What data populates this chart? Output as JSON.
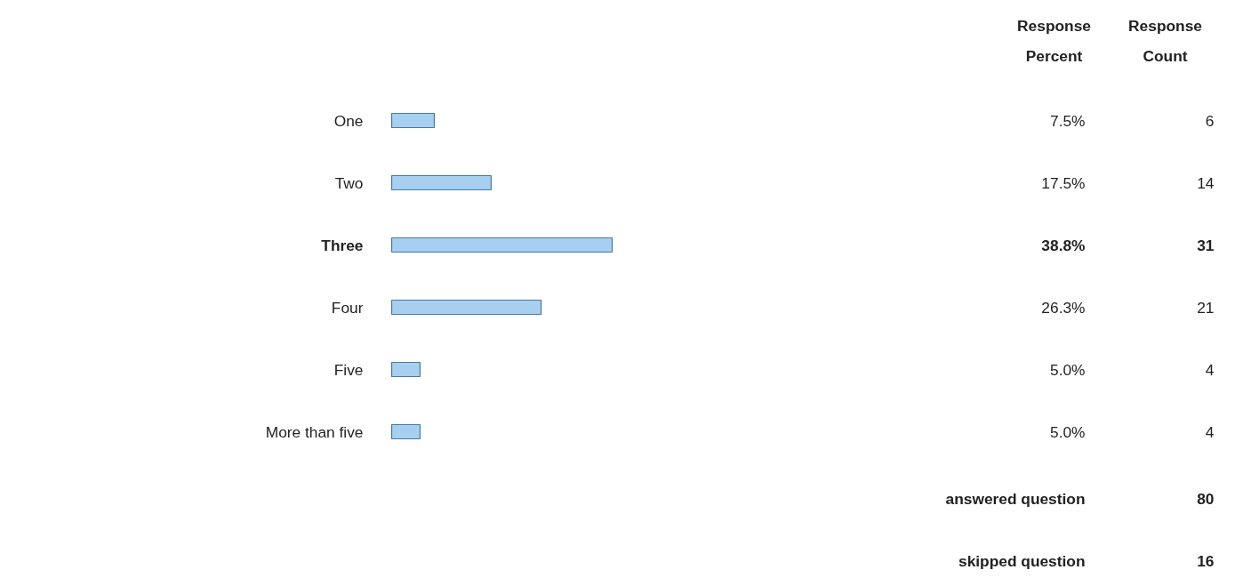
{
  "chart_data": {
    "type": "bar",
    "orientation": "horizontal",
    "categories": [
      "One",
      "Two",
      "Three",
      "Four",
      "Five",
      "More than five"
    ],
    "values": [
      7.5,
      17.5,
      38.8,
      26.3,
      5.0,
      5.0
    ],
    "value_labels": [
      "7.5%",
      "17.5%",
      "38.8%",
      "26.3%",
      "5.0%",
      "5.0%"
    ],
    "color": "#a6cff0",
    "annotations": [
      "Response Percent",
      "Response Count",
      "6",
      "14",
      "31",
      "21",
      "4",
      "4",
      "answered question",
      "80",
      "skipped question",
      "16"
    ]
  }
}
